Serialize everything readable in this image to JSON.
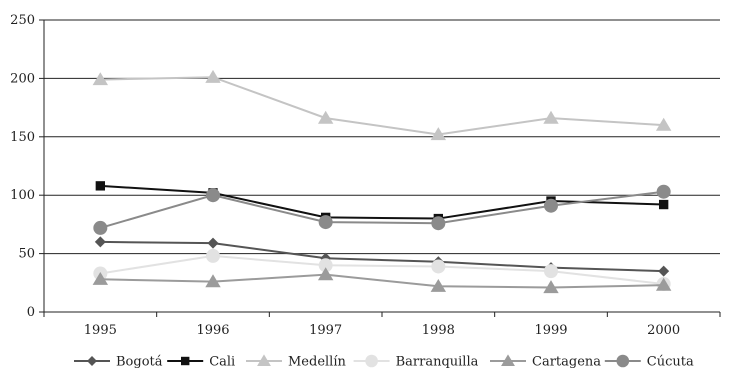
{
  "chart_data": {
    "type": "line",
    "title": "",
    "xlabel": "",
    "ylabel": "",
    "categories": [
      "1995",
      "1996",
      "1997",
      "1998",
      "1999",
      "2000"
    ],
    "ylim": [
      0,
      250
    ],
    "yticks": [
      "0",
      "50",
      "100",
      "150",
      "200",
      "250"
    ],
    "grid": "horizontal",
    "legend_position": "bottom",
    "series": [
      {
        "name": "Bogotá",
        "values": [
          60,
          59,
          46,
          43,
          38,
          35
        ],
        "color": "#555555",
        "marker": "diamond",
        "marker_color": "#555555"
      },
      {
        "name": "Cali",
        "values": [
          108,
          102,
          81,
          80,
          95,
          92
        ],
        "color": "#111111",
        "marker": "square",
        "marker_color": "#111111"
      },
      {
        "name": "Medellín",
        "values": [
          199,
          201,
          166,
          152,
          166,
          160
        ],
        "color": "#c4c4c4",
        "marker": "triangle",
        "marker_color": "#c4c4c4"
      },
      {
        "name": "Barranquilla",
        "values": [
          33,
          48,
          40,
          39,
          35,
          24
        ],
        "color": "#e2e2e2",
        "marker": "circle",
        "marker_color": "#e2e2e2"
      },
      {
        "name": "Cartagena",
        "values": [
          28,
          26,
          32,
          22,
          21,
          23
        ],
        "color": "#9b9b9b",
        "marker": "triangle",
        "marker_color": "#9b9b9b"
      },
      {
        "name": "Cúcuta",
        "values": [
          72,
          100,
          77,
          76,
          91,
          103
        ],
        "color": "#8a8a8a",
        "marker": "circle",
        "marker_color": "#8a8a8a"
      }
    ]
  }
}
